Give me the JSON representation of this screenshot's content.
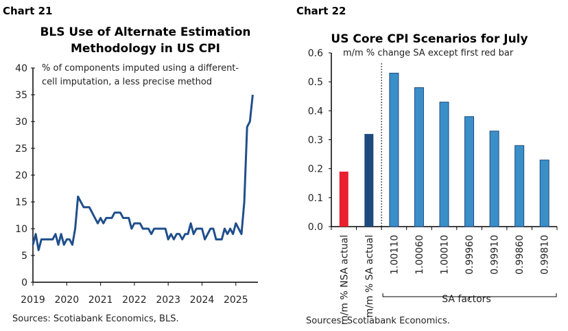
{
  "chart_data": [
    {
      "label": "Chart 21",
      "type": "line",
      "title": [
        "BLS Use of Alternate Estimation",
        "Methodology in US CPI"
      ],
      "subtitle": [
        "% of components imputed using a different-",
        "cell imputation, a less precise method"
      ],
      "source": "Sources: Scotiabank Economics, BLS.",
      "x_start": "2019-01",
      "frequency": "monthly",
      "x_ticks": [
        "2019",
        "2020",
        "2021",
        "2022",
        "2023",
        "2024",
        "2025"
      ],
      "ylim": [
        0,
        40
      ],
      "y_ticks": [
        0,
        5,
        10,
        15,
        20,
        25,
        30,
        35,
        40
      ],
      "color": "#1f4e8c",
      "values": [
        7,
        9,
        6,
        8,
        8,
        8,
        8,
        8,
        9,
        7,
        9,
        7,
        8,
        8,
        7,
        10,
        16,
        15,
        14,
        14,
        14,
        13,
        12,
        11,
        12,
        11,
        12,
        12,
        12,
        13,
        13,
        13,
        12,
        12,
        12,
        10,
        11,
        11,
        11,
        10,
        10,
        10,
        9,
        10,
        10,
        10,
        10,
        10,
        8,
        9,
        8,
        9,
        9,
        8,
        9,
        9,
        11,
        9,
        10,
        10,
        10,
        8,
        9,
        10,
        10,
        8,
        8,
        8,
        10,
        9,
        10,
        9,
        11,
        10,
        9,
        15,
        29,
        30,
        35
      ]
    },
    {
      "label": "Chart 22",
      "type": "bar",
      "title": "US Core CPI Scenarios for July",
      "subtitle": "m/m % change SA except first red bar",
      "source": "Sources: Scotiabank Economics.",
      "categories": [
        "m/m % NSA actual",
        "m/m % SA actual",
        "1.00110",
        "1.00060",
        "1.00010",
        "0.99960",
        "0.99910",
        "0.99860",
        "0.99810"
      ],
      "values": [
        0.19,
        0.32,
        0.53,
        0.48,
        0.43,
        0.38,
        0.33,
        0.28,
        0.23
      ],
      "colors": [
        "#e8202f",
        "#1f4a7d",
        "#3a8fc8",
        "#3a8fc8",
        "#3a8fc8",
        "#3a8fc8",
        "#3a8fc8",
        "#3a8fc8",
        "#3a8fc8"
      ],
      "group_label": "SA factors",
      "ylim": [
        0,
        0.6
      ],
      "y_ticks": [
        "0.0",
        "0.1",
        "0.2",
        "0.3",
        "0.4",
        "0.5",
        "0.6"
      ]
    }
  ]
}
